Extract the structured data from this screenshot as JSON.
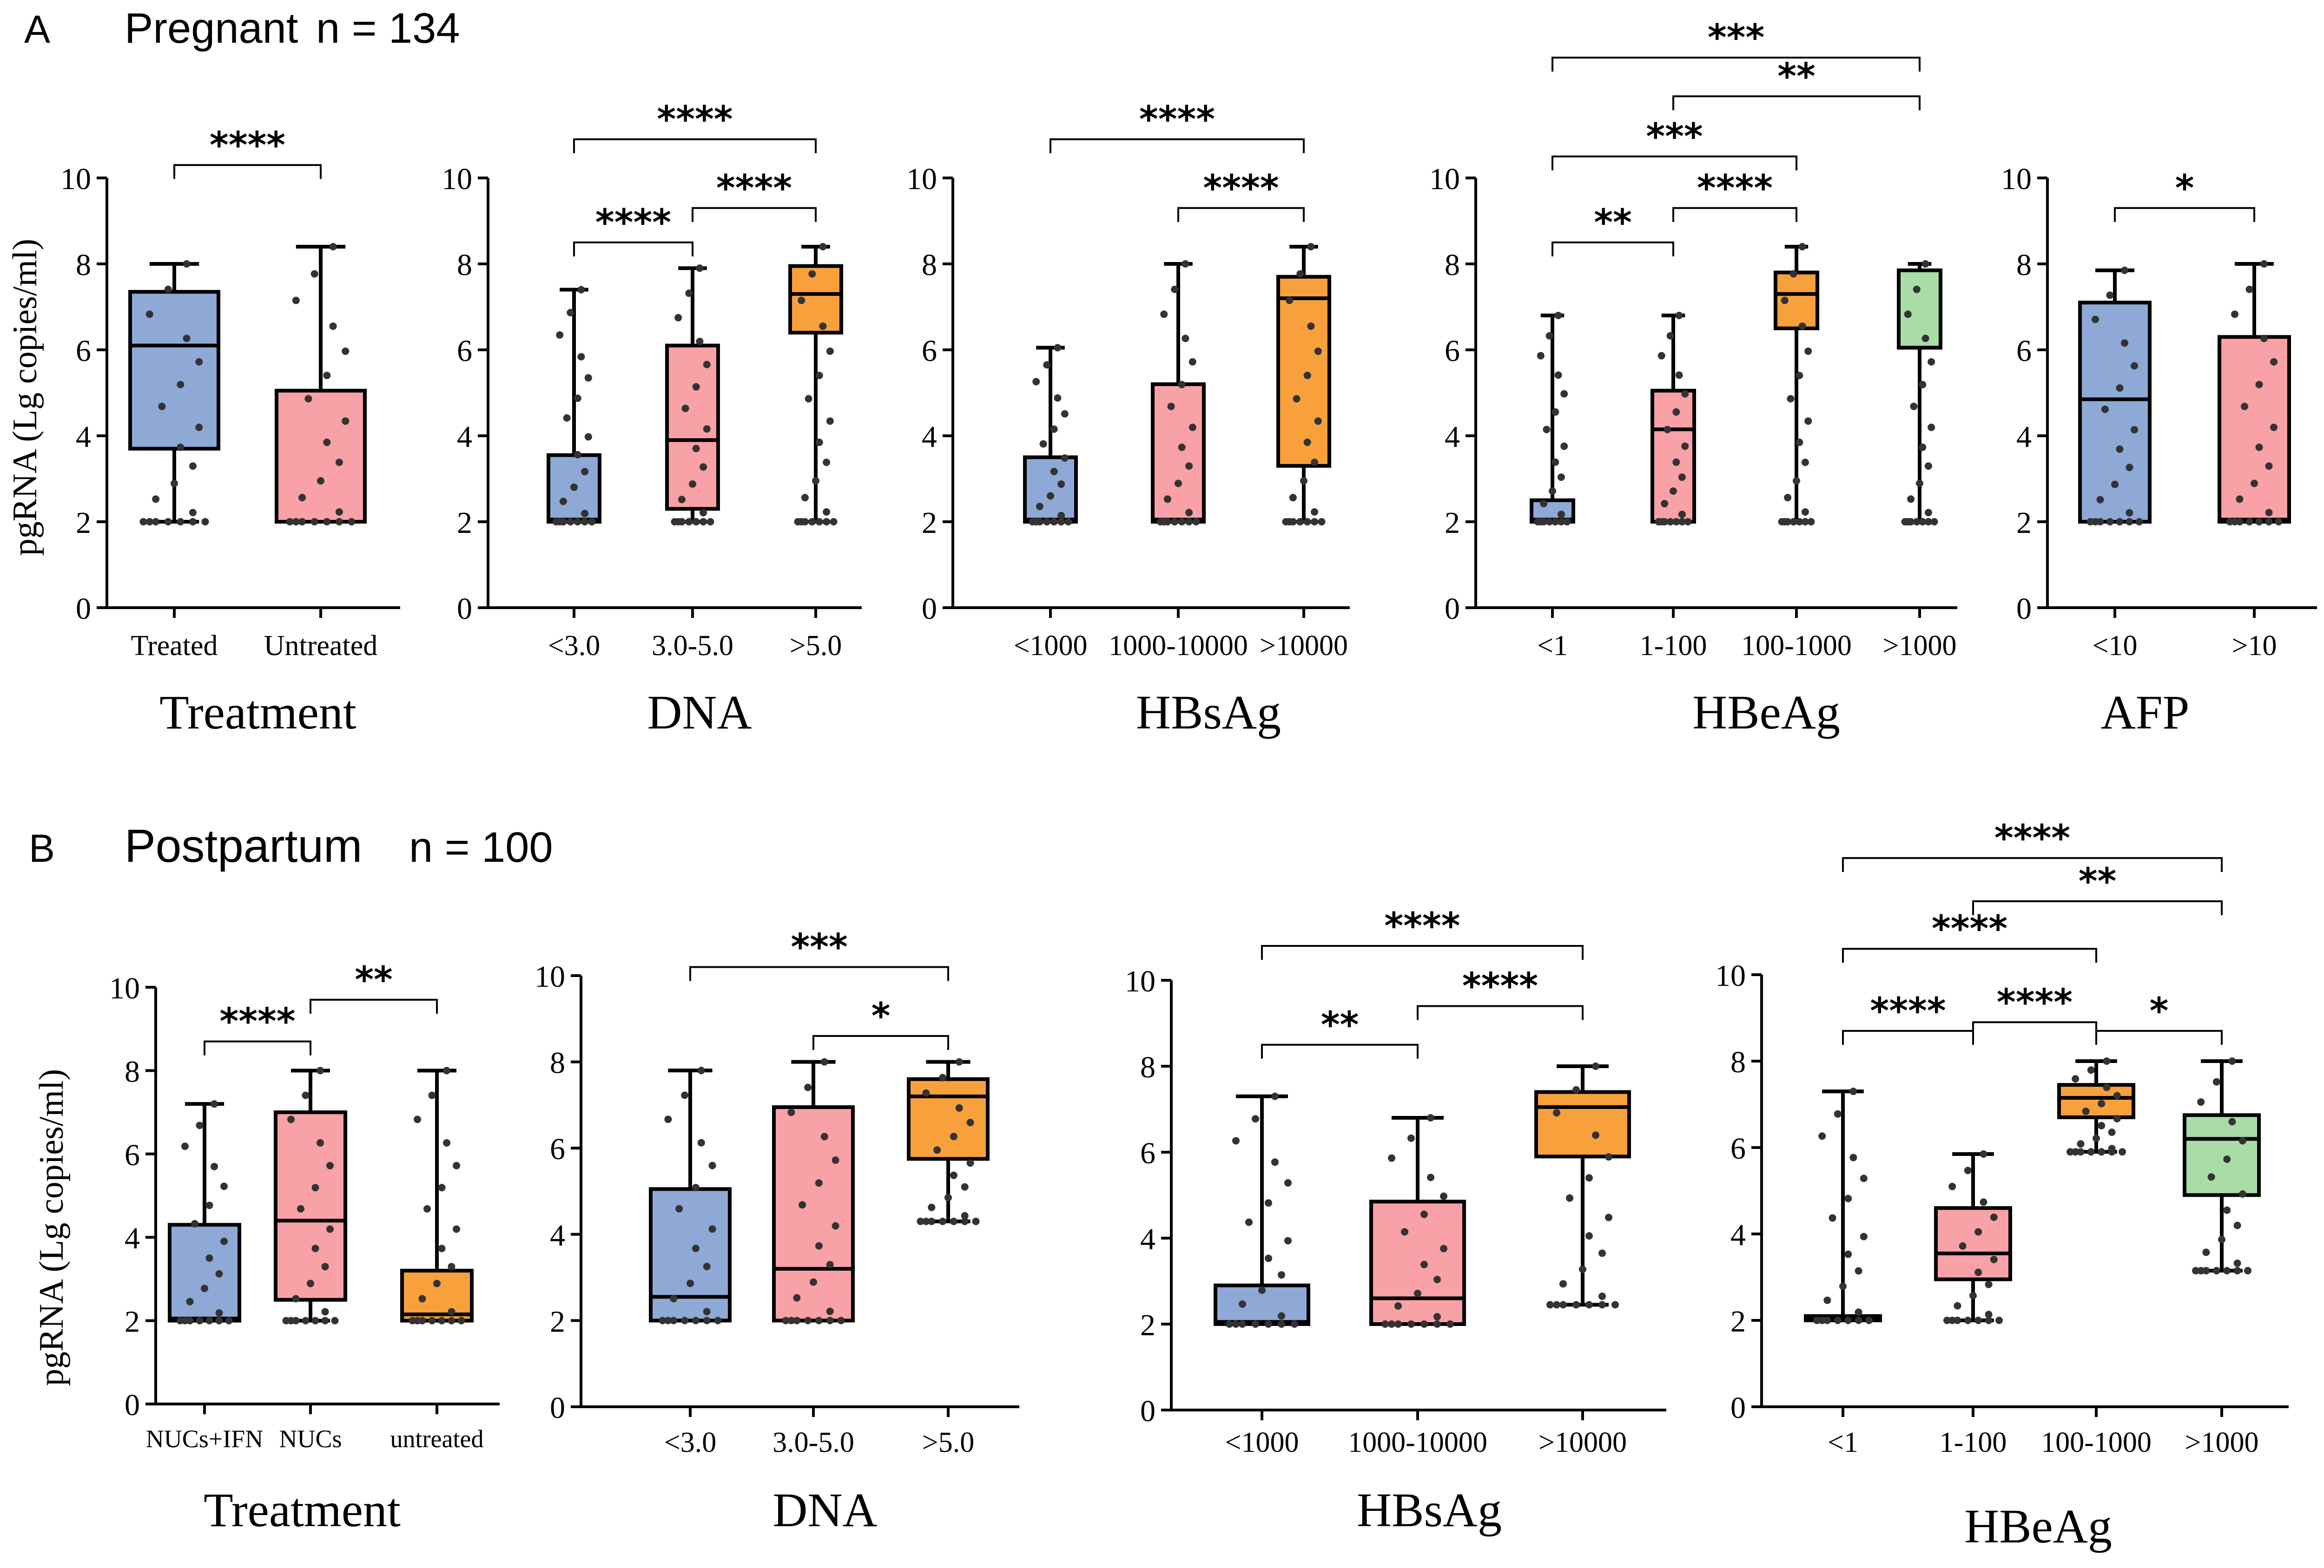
{
  "colors": {
    "blue": "#8EA9D6",
    "pink": "#F8A1A6",
    "orange": "#F8A13C",
    "green": "#A8DDA8",
    "line": "#000000",
    "dot": "#333333"
  },
  "panels": [
    {
      "letter": "A",
      "title": "Pregnant",
      "n_label": "n = 134",
      "y_label": "pgRNA (Lg copies/ml)"
    },
    {
      "letter": "B",
      "title": "Postpartum",
      "n_label": "n = 100",
      "y_label": "pgRNA (Lg copies/ml)"
    }
  ],
  "chart_data": [
    {
      "type": "box",
      "panel": "A",
      "xlabel": "Treatment",
      "ylim": [
        0,
        10
      ],
      "yticks": [
        "0",
        "2",
        "4",
        "6",
        "8",
        "10"
      ],
      "groups": [
        {
          "label": "Treated",
          "color": "blue",
          "min": 2.0,
          "q1": 3.7,
          "median": 6.1,
          "q3": 7.35,
          "max": 8.0
        },
        {
          "label": "Untreated",
          "color": "pink",
          "min": 2.0,
          "q1": 2.0,
          "median": 2.0,
          "q3": 5.05,
          "max": 8.4
        }
      ],
      "significance": [
        {
          "from": 0,
          "to": 1,
          "y": 10.3,
          "label": "****"
        }
      ]
    },
    {
      "type": "box",
      "panel": "A",
      "xlabel": "DNA",
      "ylim": [
        0,
        10
      ],
      "yticks": [
        "0",
        "2",
        "4",
        "6",
        "8",
        "10"
      ],
      "groups": [
        {
          "label": "<3.0",
          "color": "blue",
          "min": 2.0,
          "q1": 2.0,
          "median": 2.05,
          "q3": 3.55,
          "max": 7.4
        },
        {
          "label": "3.0-5.0",
          "color": "pink",
          "min": 2.0,
          "q1": 2.3,
          "median": 3.9,
          "q3": 6.1,
          "max": 7.9
        },
        {
          "label": ">5.0",
          "color": "orange",
          "min": 2.0,
          "q1": 6.4,
          "median": 7.3,
          "q3": 7.95,
          "max": 8.4
        }
      ],
      "significance": [
        {
          "from": 0,
          "to": 1,
          "y": 8.5,
          "label": "****"
        },
        {
          "from": 1,
          "to": 2,
          "y": 9.3,
          "label": "****"
        },
        {
          "from": 0,
          "to": 2,
          "y": 10.9,
          "label": "****"
        }
      ]
    },
    {
      "type": "box",
      "panel": "A",
      "xlabel": "HBsAg",
      "ylim": [
        0,
        10
      ],
      "yticks": [
        "0",
        "2",
        "4",
        "6",
        "8",
        "10"
      ],
      "groups": [
        {
          "label": "<1000",
          "color": "blue",
          "min": 2.0,
          "q1": 2.0,
          "median": 2.05,
          "q3": 3.5,
          "max": 6.05
        },
        {
          "label": "1000-10000",
          "color": "pink",
          "min": 2.0,
          "q1": 2.0,
          "median": 2.05,
          "q3": 5.2,
          "max": 8.0
        },
        {
          "label": ">10000",
          "color": "orange",
          "min": 2.0,
          "q1": 3.3,
          "median": 7.2,
          "q3": 7.7,
          "max": 8.4
        }
      ],
      "significance": [
        {
          "from": 1,
          "to": 2,
          "y": 9.3,
          "label": "****"
        },
        {
          "from": 0,
          "to": 2,
          "y": 10.9,
          "label": "****"
        }
      ]
    },
    {
      "type": "box",
      "panel": "A",
      "xlabel": "HBeAg",
      "ylim": [
        0,
        10
      ],
      "yticks": [
        "0",
        "2",
        "4",
        "6",
        "8",
        "10"
      ],
      "groups": [
        {
          "label": "<1",
          "color": "blue",
          "min": 2.0,
          "q1": 2.0,
          "median": 2.05,
          "q3": 2.5,
          "max": 6.8
        },
        {
          "label": "1-100",
          "color": "pink",
          "min": 2.0,
          "q1": 2.0,
          "median": 4.15,
          "q3": 5.05,
          "max": 6.8
        },
        {
          "label": "100-1000",
          "color": "orange",
          "min": 2.0,
          "q1": 6.5,
          "median": 7.3,
          "q3": 7.8,
          "max": 8.4
        },
        {
          "label": ">1000",
          "color": "green",
          "min": 2.0,
          "q1": 6.05,
          "median": 6.05,
          "q3": 7.85,
          "max": 8.0
        }
      ],
      "significance": [
        {
          "from": 0,
          "to": 1,
          "y": 8.5,
          "label": "**"
        },
        {
          "from": 1,
          "to": 2,
          "y": 9.3,
          "label": "****"
        },
        {
          "from": 0,
          "to": 2,
          "y": 10.5,
          "label": "***"
        },
        {
          "from": 1,
          "to": 3,
          "y": 11.9,
          "label": "**"
        },
        {
          "from": 0,
          "to": 3,
          "y": 12.8,
          "label": "***"
        }
      ]
    },
    {
      "type": "box",
      "panel": "A",
      "xlabel": "AFP",
      "ylim": [
        0,
        10
      ],
      "yticks": [
        "0",
        "2",
        "4",
        "6",
        "8",
        "10"
      ],
      "groups": [
        {
          "label": "<10",
          "color": "blue",
          "min": 2.0,
          "q1": 2.0,
          "median": 4.85,
          "q3": 7.1,
          "max": 7.85
        },
        {
          "label": ">10",
          "color": "pink",
          "min": 2.0,
          "q1": 2.0,
          "median": 2.05,
          "q3": 6.3,
          "max": 8.0
        }
      ],
      "significance": [
        {
          "from": 0,
          "to": 1,
          "y": 9.3,
          "label": "*"
        }
      ]
    },
    {
      "type": "box",
      "panel": "B",
      "xlabel": "Treatment",
      "ylim": [
        0,
        10
      ],
      "yticks": [
        "0",
        "2",
        "4",
        "6",
        "8",
        "10"
      ],
      "groups": [
        {
          "label": "NUCs+IFN",
          "color": "blue",
          "min": 2.0,
          "q1": 2.0,
          "median": 2.05,
          "q3": 4.3,
          "max": 7.2
        },
        {
          "label": "NUCs",
          "color": "pink",
          "min": 2.0,
          "q1": 2.5,
          "median": 4.4,
          "q3": 7.0,
          "max": 8.0
        },
        {
          "label": "untreated",
          "color": "orange",
          "min": 2.0,
          "q1": 2.0,
          "median": 2.15,
          "q3": 3.2,
          "max": 8.0
        }
      ],
      "significance": [
        {
          "from": 0,
          "to": 1,
          "y": 8.7,
          "label": "****"
        },
        {
          "from": 1,
          "to": 2,
          "y": 9.7,
          "label": "**"
        }
      ]
    },
    {
      "type": "box",
      "panel": "B",
      "xlabel": "DNA",
      "ylim": [
        0,
        10
      ],
      "yticks": [
        "0",
        "2",
        "4",
        "6",
        "8",
        "10"
      ],
      "groups": [
        {
          "label": "<3.0",
          "color": "blue",
          "min": 2.0,
          "q1": 2.0,
          "median": 2.55,
          "q3": 5.05,
          "max": 7.8
        },
        {
          "label": "3.0-5.0",
          "color": "pink",
          "min": 2.0,
          "q1": 2.0,
          "median": 3.2,
          "q3": 6.95,
          "max": 8.0
        },
        {
          "label": ">5.0",
          "color": "orange",
          "min": 4.3,
          "q1": 5.75,
          "median": 7.2,
          "q3": 7.6,
          "max": 8.0
        }
      ],
      "significance": [
        {
          "from": 1,
          "to": 2,
          "y": 8.6,
          "label": "*"
        },
        {
          "from": 0,
          "to": 2,
          "y": 10.2,
          "label": "***"
        }
      ]
    },
    {
      "type": "box",
      "panel": "B",
      "xlabel": "HBsAg",
      "ylim": [
        0,
        10
      ],
      "yticks": [
        "0",
        "2",
        "4",
        "6",
        "8",
        "10"
      ],
      "groups": [
        {
          "label": "<1000",
          "color": "blue",
          "min": 2.0,
          "q1": 2.0,
          "median": 2.05,
          "q3": 2.9,
          "max": 7.3
        },
        {
          "label": "1000-10000",
          "color": "pink",
          "min": 2.0,
          "q1": 2.0,
          "median": 2.6,
          "q3": 4.85,
          "max": 6.8
        },
        {
          "label": ">10000",
          "color": "orange",
          "min": 2.45,
          "q1": 5.9,
          "median": 7.05,
          "q3": 7.4,
          "max": 8.0
        }
      ],
      "significance": [
        {
          "from": 0,
          "to": 1,
          "y": 8.5,
          "label": "**"
        },
        {
          "from": 1,
          "to": 2,
          "y": 9.4,
          "label": "****"
        },
        {
          "from": 0,
          "to": 2,
          "y": 10.8,
          "label": "****"
        }
      ]
    },
    {
      "type": "box",
      "panel": "B",
      "xlabel": "HBeAg",
      "ylim": [
        0,
        10
      ],
      "yticks": [
        "0",
        "2",
        "4",
        "6",
        "8",
        "10"
      ],
      "groups": [
        {
          "label": "<1",
          "color": "blue",
          "min": 2.0,
          "q1": 2.0,
          "median": 2.05,
          "q3": 2.1,
          "max": 7.3
        },
        {
          "label": "1-100",
          "color": "pink",
          "min": 2.0,
          "q1": 2.95,
          "median": 3.55,
          "q3": 4.6,
          "max": 5.85
        },
        {
          "label": "100-1000",
          "color": "orange",
          "min": 5.9,
          "q1": 6.7,
          "median": 7.15,
          "q3": 7.45,
          "max": 8.0
        },
        {
          "label": ">1000",
          "color": "green",
          "min": 3.15,
          "q1": 4.9,
          "median": 6.2,
          "q3": 6.75,
          "max": 8.0
        }
      ],
      "significance": [
        {
          "from": 2,
          "to": 3,
          "y": 8.7,
          "label": "*"
        },
        {
          "from": 0,
          "to": 1,
          "y": 8.7,
          "label": "****"
        },
        {
          "from": 1,
          "to": 2,
          "y": 8.9,
          "label": "****"
        },
        {
          "from": 0,
          "to": 2,
          "y": 10.6,
          "label": "****"
        },
        {
          "from": 1,
          "to": 3,
          "y": 11.7,
          "label": "**"
        },
        {
          "from": 0,
          "to": 3,
          "y": 12.7,
          "label": "****"
        }
      ]
    }
  ]
}
